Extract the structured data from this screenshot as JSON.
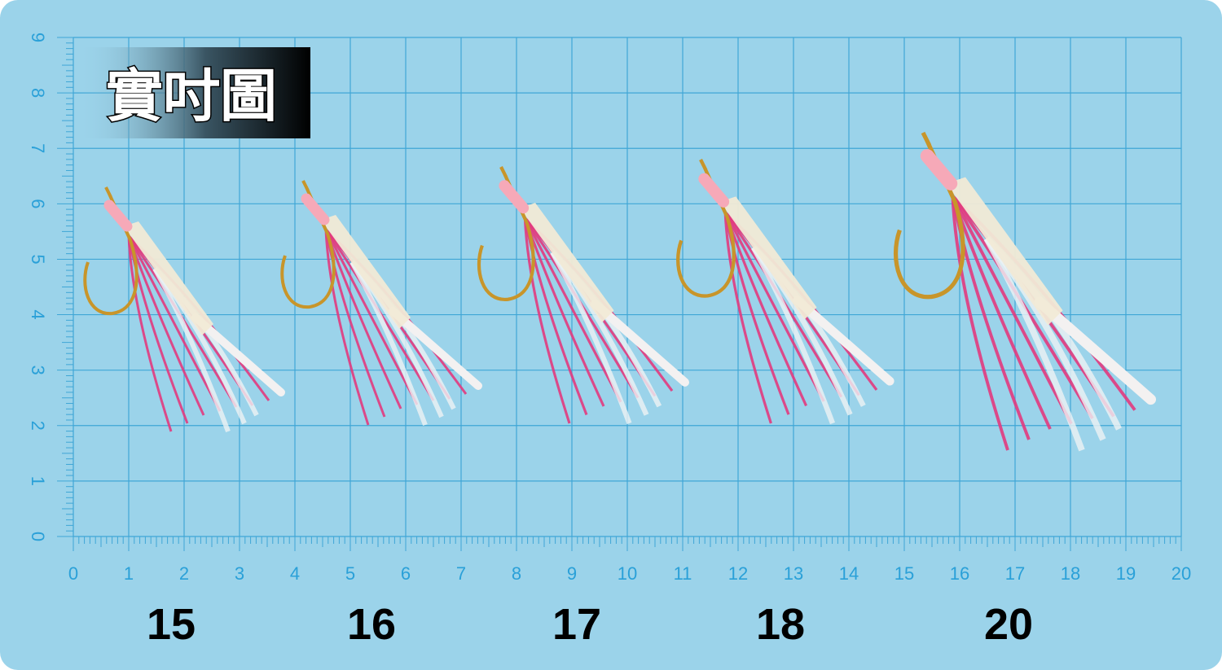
{
  "title": "實吋圖",
  "ruler": {
    "x_labels": [
      0,
      1,
      2,
      3,
      4,
      5,
      6,
      7,
      8,
      9,
      10,
      11,
      12,
      13,
      14,
      15,
      16,
      17,
      18,
      19,
      20
    ],
    "y_labels": [
      0,
      1,
      2,
      3,
      4,
      5,
      6,
      7,
      8,
      9
    ]
  },
  "sizes": [
    15,
    16,
    17,
    18,
    20
  ]
}
